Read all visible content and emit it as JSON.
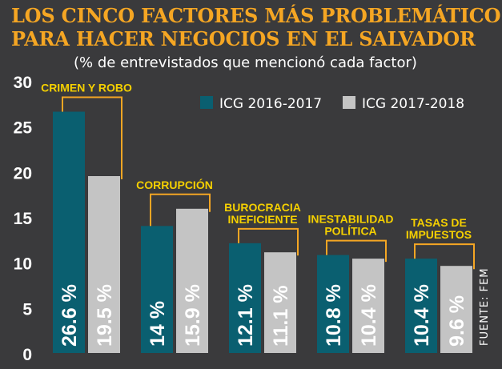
{
  "title_line1": "LOS CINCO FACTORES MÁS PROBLEMÁTICOS",
  "title_line2": "PARA HACER NEGOCIOS EN EL SALVADOR",
  "subtitle": "(% de entrevistados que mencionó cada factor)",
  "source": "FUENTE: FEM",
  "colors": {
    "background": "#3a3a3c",
    "title": "#f5a623",
    "category_label": "#f5d000",
    "bracket": "#f5a623",
    "series1": "#0a5f70",
    "series2": "#c4c4c4"
  },
  "chart_data": {
    "type": "bar",
    "title": "",
    "xlabel": "",
    "ylabel": "",
    "ylim": [
      0,
      30
    ],
    "yticks": [
      0,
      5,
      10,
      15,
      20,
      25,
      30
    ],
    "grid": false,
    "legend_position": "top-right",
    "categories": [
      [
        "CRIMEN Y ROBO"
      ],
      [
        "CORRUPCIÓN"
      ],
      [
        "BUROCRACIA",
        "INEFICIENTE"
      ],
      [
        "INESTABILIDAD",
        "POLÍTICA"
      ],
      [
        "TASAS DE",
        "IMPUESTOS"
      ]
    ],
    "series": [
      {
        "name": "ICG 2016-2017",
        "values": [
          26.6,
          14,
          12.1,
          10.8,
          10.4
        ],
        "labels": [
          "26.6 %",
          "14 %",
          "12.1 %",
          "10.8 %",
          "10.4 %"
        ]
      },
      {
        "name": "ICG 2017-2018",
        "values": [
          19.5,
          15.9,
          11.1,
          10.4,
          9.6
        ],
        "labels": [
          "19.5 %",
          "15.9 %",
          "11.1 %",
          "10.4 %",
          "9.6 %"
        ]
      }
    ]
  }
}
